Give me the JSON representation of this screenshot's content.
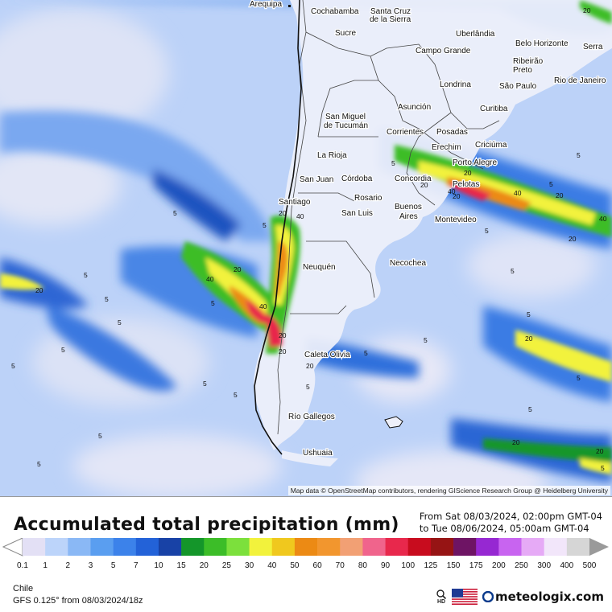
{
  "title": "Accumulated total precipitation (mm)",
  "period": {
    "from": "From Sat 08/03/2024, 02:00pm GMT-04",
    "to": "to Tue 08/06/2024, 05:00am GMT-04"
  },
  "region": "Chile",
  "model": "GFS 0.125° from  08/03/2024/18z",
  "attribution": "Map data © OpenStreetMap contributors, rendering GIScience Research Group @ Heidelberg University",
  "brand": "meteologix.com",
  "hd_label": "HD",
  "icons": [
    "hd-zoom-icon",
    "us-flag-icon",
    "meteologix-logo-icon"
  ],
  "colors": {
    "panel_border": "#999999",
    "land_low": "#eef0fa",
    "ocean_low": "#c4d6fa"
  },
  "scale": {
    "labels": [
      "0.1",
      "1",
      "2",
      "3",
      "5",
      "7",
      "10",
      "15",
      "20",
      "25",
      "30",
      "40",
      "50",
      "60",
      "70",
      "80",
      "90",
      "100",
      "125",
      "150",
      "175",
      "200",
      "250",
      "300",
      "400",
      "500"
    ],
    "colors": [
      "#e3e0f5",
      "#bcd4fa",
      "#8ab8f5",
      "#5a9ef0",
      "#3c82ea",
      "#2362d8",
      "#1842a6",
      "#14962a",
      "#3cbd28",
      "#7ce03c",
      "#f2f23c",
      "#f0c81e",
      "#ec8a14",
      "#f2962e",
      "#f2a074",
      "#f0648c",
      "#e8284c",
      "#c80c1e",
      "#961414",
      "#6e1464",
      "#9628d2",
      "#c864f0",
      "#e6aaf6",
      "#f2e6fa",
      "#d6d6d6"
    ]
  },
  "cities": [
    {
      "name": "Arequipa"
    },
    {
      "name": "Cochabamba"
    },
    {
      "name": "Santa Cruz"
    },
    {
      "name": "de la Sierra"
    },
    {
      "name": "Sucre"
    },
    {
      "name": "Uberlândia"
    },
    {
      "name": "Belo Horizonte"
    },
    {
      "name": "Serra"
    },
    {
      "name": "Campo Grande"
    },
    {
      "name": "Ribeirão"
    },
    {
      "name": "Preto"
    },
    {
      "name": "São Paulo"
    },
    {
      "name": "Rio de Janeiro"
    },
    {
      "name": "Londrina"
    },
    {
      "name": "Asunción"
    },
    {
      "name": "Curitiba"
    },
    {
      "name": "San Miguel"
    },
    {
      "name": "de Tucumán"
    },
    {
      "name": "Corrientes"
    },
    {
      "name": "Posadas"
    },
    {
      "name": "Erechim"
    },
    {
      "name": "Criciúma"
    },
    {
      "name": "La Rioja"
    },
    {
      "name": "Porto Alegre"
    },
    {
      "name": "San Juan"
    },
    {
      "name": "Córdoba"
    },
    {
      "name": "Concordia"
    },
    {
      "name": "Pelotas"
    },
    {
      "name": "Santiago"
    },
    {
      "name": "Rosario"
    },
    {
      "name": "San Luis"
    },
    {
      "name": "Buenos"
    },
    {
      "name": "Aires"
    },
    {
      "name": "Montevideo"
    },
    {
      "name": "Neuquén"
    },
    {
      "name": "Necochea"
    },
    {
      "name": "Caleta Olivia"
    },
    {
      "name": "Río Gallegos"
    },
    {
      "name": "Ushuaia"
    }
  ],
  "contour_labels": [
    "5",
    "5",
    "5",
    "5",
    "5",
    "5",
    "5",
    "5",
    "5",
    "5",
    "5",
    "5",
    "5",
    "5",
    "5",
    "5",
    "5",
    "5",
    "5",
    "5",
    "5",
    "5",
    "5",
    "5",
    "20",
    "20",
    "20",
    "20",
    "20",
    "20",
    "20",
    "20",
    "20",
    "20",
    "20",
    "20",
    "20",
    "20",
    "20",
    "40",
    "40",
    "40",
    "40",
    "40",
    "40"
  ]
}
